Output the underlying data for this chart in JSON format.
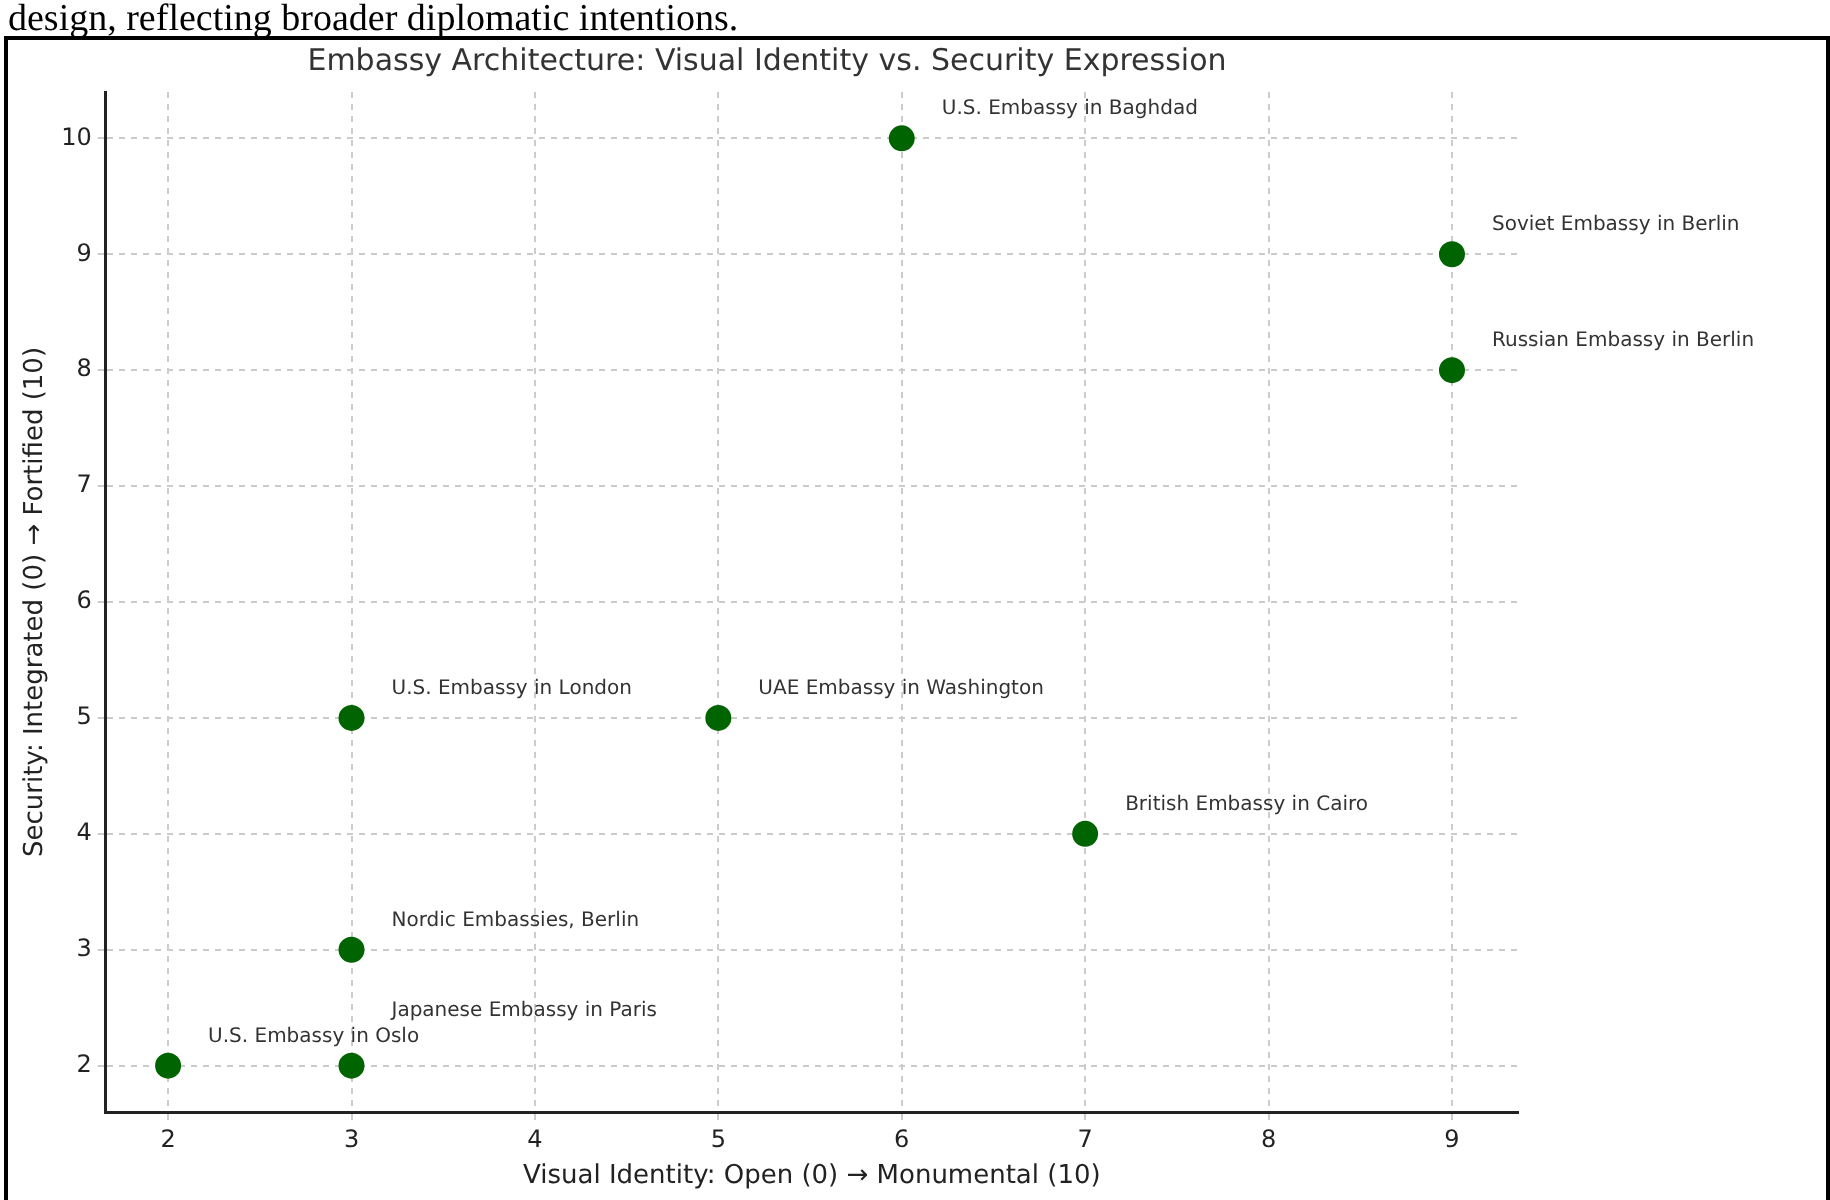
{
  "chart_data": {
    "type": "scatter",
    "title": "Embassy Architecture: Visual Identity vs. Security Expression",
    "xlabel": "Visual Identity: Open (0) → Monumental (10)",
    "ylabel": "Security: Integrated (0) → Fortified (10)",
    "x": [
      6,
      9,
      9,
      3,
      5,
      7,
      3,
      2,
      3
    ],
    "series": [
      {
        "color": "#006400",
        "values": [
          10,
          9,
          8,
          5,
          5,
          4,
          3,
          2,
          2
        ]
      }
    ],
    "annotations": [
      {
        "text": "U.S. Embassy in Baghdad",
        "x": 6,
        "y": 10
      },
      {
        "text": "Soviet Embassy in Berlin",
        "x": 9,
        "y": 9
      },
      {
        "text": "Russian Embassy in Berlin",
        "x": 9,
        "y": 8
      },
      {
        "text": "U.S. Embassy in London",
        "x": 3,
        "y": 5
      },
      {
        "text": "UAE Embassy in Washington",
        "x": 5,
        "y": 5
      },
      {
        "text": "British Embassy in Cairo",
        "x": 7,
        "y": 4
      },
      {
        "text": "Nordic Embassies, Berlin",
        "x": 3,
        "y": 3
      },
      {
        "text": "U.S. Embassy in Oslo",
        "x": 2,
        "y": 2
      },
      {
        "text": "Japanese Embassy in Paris",
        "x": 3,
        "y": 2
      },
      "design, reflecting broader diplomatic intentions."
    ],
    "xlim": [
      1.66,
      9.36
    ],
    "ylim": [
      1.6,
      10.4
    ],
    "xticks": [
      2,
      3,
      4,
      5,
      6,
      7,
      8,
      9
    ],
    "yticks": [
      2,
      3,
      4,
      5,
      6,
      7,
      8,
      9,
      10
    ],
    "grid": true,
    "marker": "circle",
    "legend": false
  }
}
